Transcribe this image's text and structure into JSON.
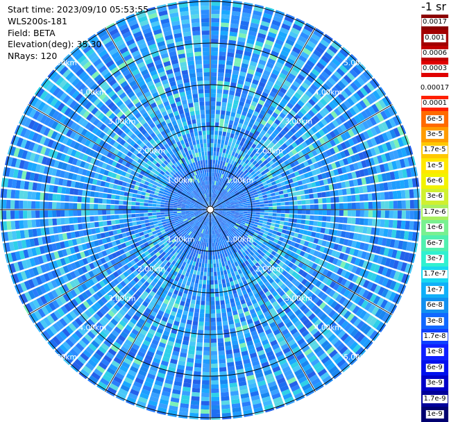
{
  "info": {
    "start_time": "Start time: 2023/09/10 05:53:55",
    "instrument": "WLS200s-181",
    "field": "Field: BETA",
    "elevation": "Elevation(deg): 35.30",
    "nrays": "NRays: 120"
  },
  "unit_label": "-1 sr",
  "range_rings": {
    "values_km": [
      1,
      2,
      3,
      4,
      5
    ],
    "labels": [
      "1.00km",
      "2.00km",
      "3.00km",
      "4.00km",
      "5.00km"
    ]
  },
  "colorbar": {
    "labels": [
      "0.0017",
      "0.001",
      "0.0006",
      "0.0003",
      "0.00017",
      "0.0001",
      "6e-5",
      "3e-5",
      "1.7e-5",
      "1e-5",
      "6e-6",
      "3e-6",
      "1.7e-6",
      "1e-6",
      "6e-7",
      "3e-7",
      "1.7e-7",
      "1e-7",
      "6e-8",
      "3e-8",
      "1.7e-8",
      "1e-8",
      "6e-9",
      "3e-9",
      "1.7e-9",
      "1e-9"
    ],
    "colors": [
      "#8b0000",
      "#a30000",
      "#c00000",
      "#e00000",
      "#ffffff",
      "#ff2000",
      "#ff6a00",
      "#ff9c00",
      "#ffc800",
      "#ffe800",
      "#f2f200",
      "#d0f030",
      "#a8f060",
      "#78f090",
      "#50f0b0",
      "#30f0d0",
      "#18d8f0",
      "#10b0f8",
      "#1090f0",
      "#1068ff",
      "#1040ff",
      "#1020ff",
      "#0010ee",
      "#0000c8",
      "#00009a",
      "#000070"
    ]
  }
}
